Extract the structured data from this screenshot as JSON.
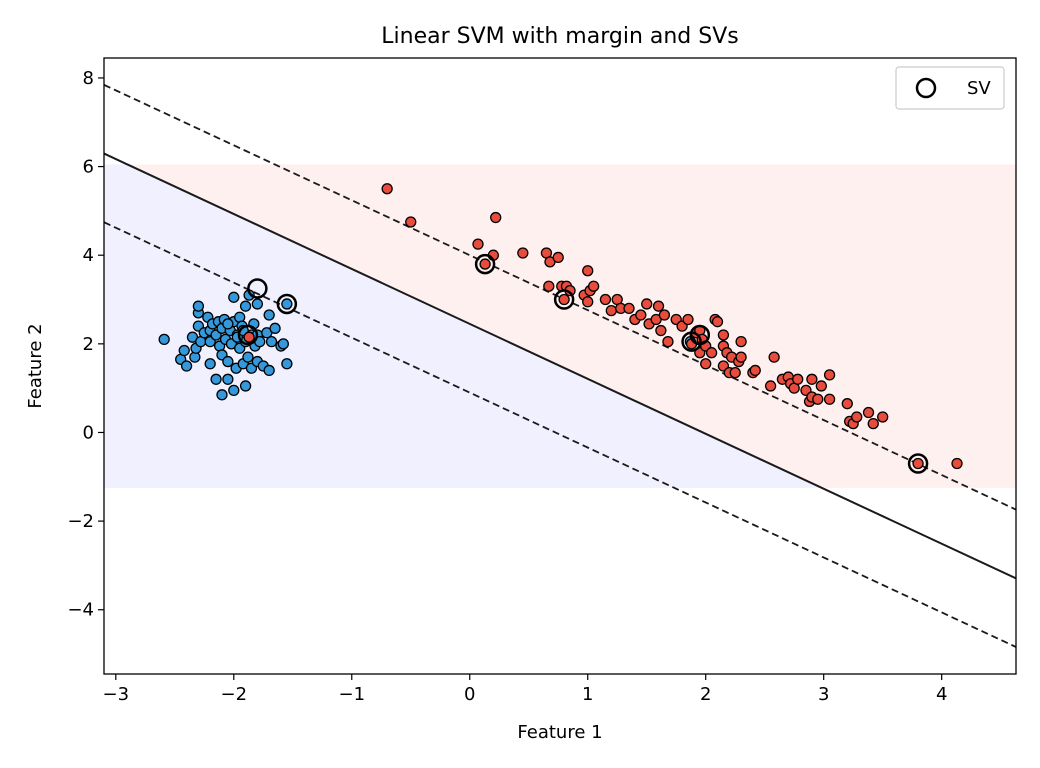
{
  "chart_data": {
    "type": "scatter",
    "title": "Linear SVM with margin and SVs",
    "xlabel": "Feature 1",
    "ylabel": "Feature 2",
    "xlim": [
      -3.1,
      4.63
    ],
    "ylim": [
      -5.45,
      8.45
    ],
    "xticks": [
      -3,
      -2,
      -1,
      0,
      1,
      2,
      3,
      4
    ],
    "yticks": [
      -4,
      -2,
      0,
      2,
      4,
      6,
      8
    ],
    "tick_labels_x": [
      "−3",
      "−2",
      "−1",
      "0",
      "1",
      "2",
      "3",
      "4"
    ],
    "tick_labels_y": [
      "−4",
      "−2",
      "0",
      "2",
      "4",
      "6",
      "8"
    ],
    "grid": false,
    "legend": {
      "placement": "top-right",
      "entries": [
        "SV"
      ]
    },
    "decision_regions": {
      "y_range": [
        -1.25,
        6.05
      ],
      "class_0_color": "#f0f0ff",
      "class_1_color": "#fff0f0"
    },
    "boundary": {
      "slope": -1.24,
      "intercept": 2.45
    },
    "margins": [
      {
        "slope": -1.24,
        "intercept": 4.0
      },
      {
        "slope": -1.24,
        "intercept": 0.9
      }
    ],
    "colors": {
      "class_0": "#3498db",
      "class_1": "#e74c3c",
      "edge": "#000000"
    },
    "series": [
      {
        "class": 0,
        "points": [
          [
            -2.59,
            2.1
          ],
          [
            -2.45,
            1.65
          ],
          [
            -2.42,
            1.85
          ],
          [
            -2.4,
            1.5
          ],
          [
            -2.35,
            2.15
          ],
          [
            -2.33,
            1.7
          ],
          [
            -2.32,
            1.9
          ],
          [
            -2.3,
            2.4
          ],
          [
            -2.3,
            2.7
          ],
          [
            -2.3,
            2.85
          ],
          [
            -2.28,
            2.05
          ],
          [
            -2.25,
            2.25
          ],
          [
            -2.22,
            2.6
          ],
          [
            -2.2,
            2.3
          ],
          [
            -2.2,
            2.05
          ],
          [
            -2.2,
            1.55
          ],
          [
            -2.18,
            2.45
          ],
          [
            -2.15,
            2.2
          ],
          [
            -2.15,
            1.2
          ],
          [
            -2.13,
            2.5
          ],
          [
            -2.12,
            1.95
          ],
          [
            -2.1,
            2.35
          ],
          [
            -2.1,
            1.75
          ],
          [
            -2.1,
            0.85
          ],
          [
            -2.08,
            2.55
          ],
          [
            -2.07,
            2.1
          ],
          [
            -2.05,
            1.2
          ],
          [
            -2.05,
            1.6
          ],
          [
            -2.03,
            2.3
          ],
          [
            -2.02,
            2.0
          ],
          [
            -2.0,
            2.5
          ],
          [
            -2.0,
            3.05
          ],
          [
            -2.0,
            0.95
          ],
          [
            -1.98,
            1.45
          ],
          [
            -1.97,
            2.2
          ],
          [
            -1.95,
            1.9
          ],
          [
            -1.95,
            2.6
          ],
          [
            -1.93,
            2.4
          ],
          [
            -1.92,
            1.55
          ],
          [
            -1.9,
            2.05
          ],
          [
            -1.9,
            2.85
          ],
          [
            -1.9,
            1.05
          ],
          [
            -1.88,
            1.7
          ],
          [
            -1.87,
            3.1
          ],
          [
            -1.85,
            2.2
          ],
          [
            -1.85,
            1.45
          ],
          [
            -1.83,
            2.45
          ],
          [
            -1.82,
            1.95
          ],
          [
            -1.8,
            2.2
          ],
          [
            -1.8,
            1.6
          ],
          [
            -1.8,
            2.9
          ],
          [
            -1.78,
            2.05
          ],
          [
            -1.75,
            1.5
          ],
          [
            -1.72,
            2.25
          ],
          [
            -1.7,
            1.4
          ],
          [
            -1.7,
            2.65
          ],
          [
            -1.68,
            2.05
          ],
          [
            -1.65,
            2.35
          ],
          [
            -1.6,
            1.95
          ],
          [
            -1.58,
            2.0
          ],
          [
            -1.55,
            1.55
          ],
          [
            -1.55,
            2.9
          ],
          [
            1.87,
            2.05
          ],
          [
            -2.05,
            2.45
          ],
          [
            -1.97,
            2.15
          ],
          [
            -1.92,
            2.3
          ]
        ]
      },
      {
        "class": 1,
        "points": [
          [
            -0.7,
            5.5
          ],
          [
            -0.5,
            4.75
          ],
          [
            0.07,
            4.25
          ],
          [
            0.13,
            3.8
          ],
          [
            0.2,
            4.0
          ],
          [
            0.22,
            4.85
          ],
          [
            0.45,
            4.05
          ],
          [
            0.65,
            4.05
          ],
          [
            0.67,
            3.3
          ],
          [
            0.68,
            3.85
          ],
          [
            0.75,
            3.95
          ],
          [
            0.78,
            3.3
          ],
          [
            0.8,
            3.0
          ],
          [
            0.82,
            3.3
          ],
          [
            0.85,
            3.2
          ],
          [
            0.97,
            3.1
          ],
          [
            1.0,
            3.65
          ],
          [
            1.0,
            2.95
          ],
          [
            1.02,
            3.2
          ],
          [
            1.05,
            3.3
          ],
          [
            1.15,
            3.0
          ],
          [
            1.2,
            2.75
          ],
          [
            1.25,
            3.0
          ],
          [
            1.28,
            2.8
          ],
          [
            1.35,
            2.8
          ],
          [
            1.4,
            2.55
          ],
          [
            1.45,
            2.65
          ],
          [
            1.5,
            2.9
          ],
          [
            1.52,
            2.45
          ],
          [
            1.58,
            2.55
          ],
          [
            1.6,
            2.85
          ],
          [
            1.62,
            2.3
          ],
          [
            1.65,
            2.65
          ],
          [
            1.68,
            2.05
          ],
          [
            1.75,
            2.55
          ],
          [
            1.8,
            2.4
          ],
          [
            1.85,
            2.55
          ],
          [
            1.88,
            2.0
          ],
          [
            1.92,
            2.25
          ],
          [
            1.95,
            2.3
          ],
          [
            1.95,
            1.8
          ],
          [
            1.97,
            2.1
          ],
          [
            2.0,
            1.95
          ],
          [
            2.0,
            1.55
          ],
          [
            2.05,
            1.8
          ],
          [
            2.08,
            2.55
          ],
          [
            2.1,
            2.5
          ],
          [
            2.15,
            1.95
          ],
          [
            2.15,
            1.5
          ],
          [
            2.15,
            2.2
          ],
          [
            2.18,
            1.8
          ],
          [
            2.2,
            1.35
          ],
          [
            2.22,
            1.7
          ],
          [
            2.25,
            1.35
          ],
          [
            2.28,
            1.6
          ],
          [
            2.3,
            2.05
          ],
          [
            2.3,
            1.7
          ],
          [
            2.4,
            1.35
          ],
          [
            2.42,
            1.4
          ],
          [
            2.55,
            1.05
          ],
          [
            2.58,
            1.7
          ],
          [
            2.65,
            1.2
          ],
          [
            2.7,
            1.25
          ],
          [
            2.72,
            1.1
          ],
          [
            2.75,
            1.0
          ],
          [
            2.78,
            1.2
          ],
          [
            2.85,
            0.95
          ],
          [
            2.88,
            0.7
          ],
          [
            2.9,
            1.2
          ],
          [
            2.9,
            0.8
          ],
          [
            2.95,
            0.75
          ],
          [
            2.98,
            1.05
          ],
          [
            3.05,
            1.3
          ],
          [
            3.05,
            0.75
          ],
          [
            3.2,
            0.65
          ],
          [
            3.22,
            0.25
          ],
          [
            3.25,
            0.2
          ],
          [
            3.28,
            0.35
          ],
          [
            3.38,
            0.45
          ],
          [
            3.42,
            0.2
          ],
          [
            3.5,
            0.35
          ],
          [
            3.8,
            -0.7
          ],
          [
            4.13,
            -0.7
          ],
          [
            -1.87,
            2.15
          ]
        ]
      }
    ],
    "support_vectors": [
      [
        -1.8,
        3.25
      ],
      [
        -1.55,
        2.9
      ],
      [
        -1.88,
        2.2
      ],
      [
        0.13,
        3.8
      ],
      [
        0.8,
        3.0
      ],
      [
        1.88,
        2.05
      ],
      [
        1.95,
        2.2
      ],
      [
        3.8,
        -0.7
      ]
    ]
  }
}
